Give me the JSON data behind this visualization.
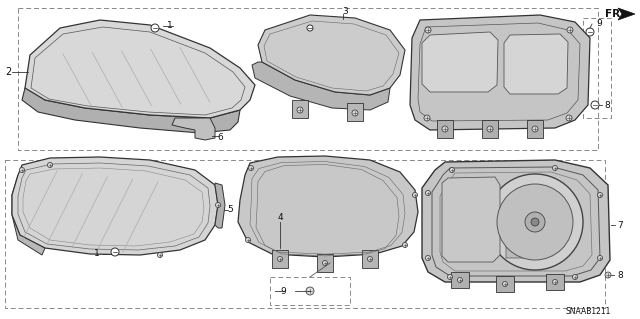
{
  "bg_color": "#ffffff",
  "diagram_code": "SNAAB1211",
  "line_color": "#333333",
  "light_gray": "#c8c8c8",
  "mid_gray": "#aaaaaa",
  "dark_gray": "#666666"
}
